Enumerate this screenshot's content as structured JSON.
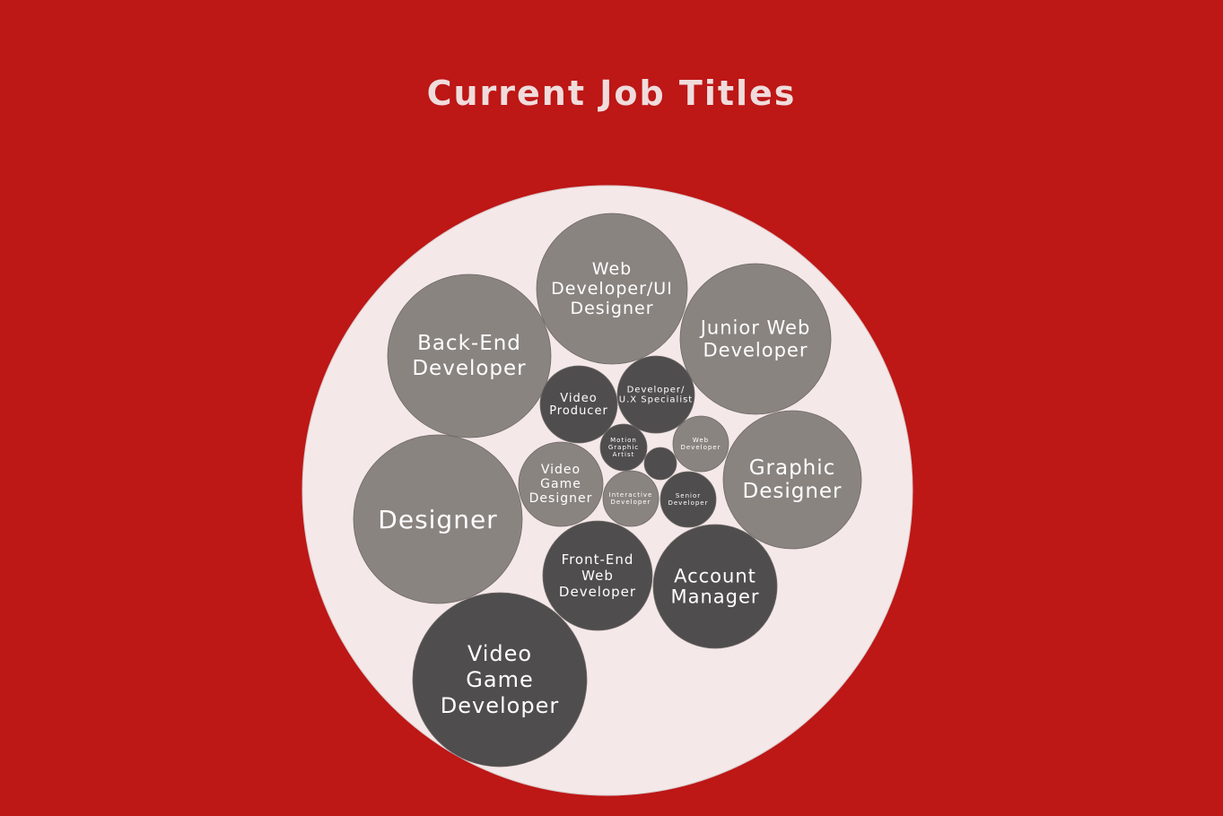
{
  "title": "Current Job Titles",
  "colors": {
    "background": "#bd1716",
    "pack": "#f5e8e8",
    "light_bubble": "#8a8480",
    "dark_bubble": "#4f4d4e",
    "title": "#f0dcdc",
    "label": "#ffffff"
  },
  "chart_data": {
    "type": "bubble-pack",
    "title": "Current Job Titles",
    "bubbles": [
      {
        "label": "Web Developer/UI Designer",
        "lines": [
          "Web",
          "Developer/UI",
          "Designer"
        ],
        "tone": "light",
        "relative_size": 84
      },
      {
        "label": "Back-End Developer",
        "lines": [
          "Back-End",
          "Developer"
        ],
        "tone": "light",
        "relative_size": 91
      },
      {
        "label": "Junior Web Developer",
        "lines": [
          "Junior Web",
          "Developer"
        ],
        "tone": "light",
        "relative_size": 84
      },
      {
        "label": "Video Producer",
        "lines": [
          "Video",
          "Producer"
        ],
        "tone": "dark",
        "relative_size": 43
      },
      {
        "label": "Developer/ U.X Specialist",
        "lines": [
          "Developer/",
          "U.X Specialist"
        ],
        "tone": "dark",
        "relative_size": 43
      },
      {
        "label": "Motion Graphic Artist",
        "lines": [
          "Motion",
          "Graphic",
          "Artist"
        ],
        "tone": "dark",
        "relative_size": 26
      },
      {
        "label": "Web Developer",
        "lines": [
          "Web",
          "Developer"
        ],
        "tone": "light",
        "relative_size": 31
      },
      {
        "label": "",
        "lines": [],
        "tone": "dark",
        "relative_size": 18
      },
      {
        "label": "Graphic Designer",
        "lines": [
          "Graphic",
          "Designer"
        ],
        "tone": "light",
        "relative_size": 77
      },
      {
        "label": "Designer",
        "lines": [
          "Designer"
        ],
        "tone": "light",
        "relative_size": 94
      },
      {
        "label": "Video Game Designer",
        "lines": [
          "Video",
          "Game",
          "Designer"
        ],
        "tone": "light",
        "relative_size": 47
      },
      {
        "label": "Interactive Developer",
        "lines": [
          "Interactive",
          "Developer"
        ],
        "tone": "light",
        "relative_size": 31
      },
      {
        "label": "Senior Developer",
        "lines": [
          "Senior",
          "Developer"
        ],
        "tone": "dark",
        "relative_size": 31
      },
      {
        "label": "Front-End Web Developer",
        "lines": [
          "Front-End",
          "Web",
          "Developer"
        ],
        "tone": "dark",
        "relative_size": 61
      },
      {
        "label": "Account Manager",
        "lines": [
          "Account",
          "Manager"
        ],
        "tone": "dark",
        "relative_size": 69
      },
      {
        "label": "Video Game Developer",
        "lines": [
          "Video",
          "Game",
          "Developer"
        ],
        "tone": "dark",
        "relative_size": 97
      }
    ]
  }
}
